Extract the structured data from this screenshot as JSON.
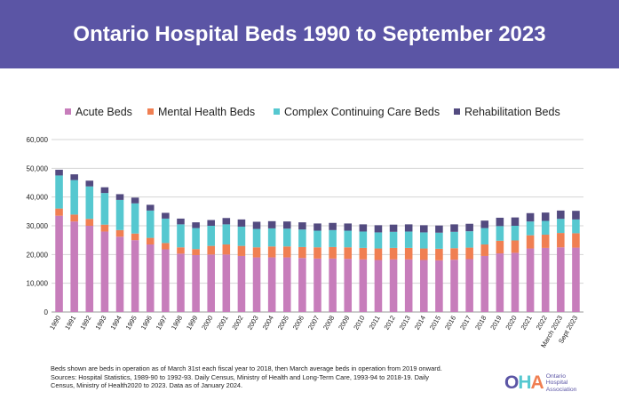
{
  "title": "Ontario Hospital Beds 1990 to September 2023",
  "footnote": {
    "line1": "Beds shown are beds in operation as of March 31st each fiscal year to 2018, then March average beds in operation from 2019 onward.",
    "line2": "Sources: Hospital Statistics, 1989-90 to 1992-93. Daily Census, Ministry of Health and Long-Term Care, 1993-94 to 2018-19. Daily",
    "line3": "Census, Ministry of Health2020 to 2023. Data as of January 2024."
  },
  "logo": {
    "mark_o": "O",
    "mark_h": "H",
    "mark_a": "A",
    "line1": "Ontario",
    "line2": "Hospital",
    "line3": "Association"
  },
  "chart_data": {
    "type": "bar",
    "stacked": true,
    "title": "Ontario Hospital Beds 1990 to September 2023",
    "xlabel": "",
    "ylabel": "",
    "ylim": [
      0,
      60000
    ],
    "yticks": [
      0,
      10000,
      20000,
      30000,
      40000,
      50000,
      60000
    ],
    "ytick_labels": [
      "0",
      "10,000",
      "20,000",
      "30,000",
      "40,000",
      "50,000",
      "60,000"
    ],
    "grid": true,
    "legend_position": "top",
    "categories": [
      "1990",
      "1991",
      "1992",
      "1993",
      "1994",
      "1995",
      "1996",
      "1997",
      "1998",
      "1999",
      "2000",
      "2001",
      "2002",
      "2003",
      "2004",
      "2005",
      "2006",
      "2007",
      "2008",
      "2009",
      "2010",
      "2011",
      "2012",
      "2013",
      "2014",
      "2015",
      "2016",
      "2017",
      "2018",
      "2019",
      "2020",
      "2021",
      "2022",
      "March 2023",
      "Sept 2023"
    ],
    "series": [
      {
        "name": "Acute Beds",
        "color": "#c77dbb",
        "values": [
          33500,
          31500,
          30000,
          28000,
          26200,
          25000,
          23500,
          21800,
          20300,
          19800,
          20000,
          20000,
          19500,
          19000,
          19000,
          19000,
          18800,
          18600,
          18600,
          18500,
          18300,
          18100,
          18300,
          18300,
          18100,
          18000,
          18200,
          18400,
          19500,
          20400,
          20600,
          22100,
          22300,
          22500,
          22400
        ]
      },
      {
        "name": "Mental Health Beds",
        "color": "#f07f52",
        "values": [
          2500,
          2400,
          2400,
          2400,
          2300,
          2300,
          2300,
          2200,
          2200,
          2100,
          3000,
          3500,
          3500,
          3500,
          3800,
          3800,
          3800,
          3900,
          4000,
          4000,
          4000,
          4000,
          4000,
          4000,
          4000,
          4000,
          4000,
          4000,
          4000,
          4400,
          4300,
          4600,
          4600,
          5000,
          5000
        ]
      },
      {
        "name": "Complex Continuing Care Beds",
        "color": "#56c8d0",
        "values": [
          11500,
          12000,
          11300,
          11000,
          10500,
          10500,
          9500,
          8500,
          8000,
          7300,
          7000,
          7000,
          6700,
          6400,
          6300,
          6200,
          6100,
          5800,
          5900,
          5800,
          5700,
          5600,
          5600,
          5700,
          5600,
          5600,
          5700,
          5700,
          5700,
          5100,
          5100,
          4800,
          4800,
          4900,
          4800
        ]
      },
      {
        "name": "Rehabilitation Beds",
        "color": "#534b80",
        "values": [
          2000,
          2000,
          2000,
          2000,
          2000,
          2000,
          2000,
          2000,
          2000,
          2000,
          2000,
          2200,
          2500,
          2500,
          2500,
          2500,
          2500,
          2500,
          2500,
          2500,
          2500,
          2500,
          2500,
          2500,
          2500,
          2500,
          2600,
          2600,
          2600,
          2900,
          2900,
          2900,
          2900,
          2900,
          3000
        ]
      }
    ]
  }
}
